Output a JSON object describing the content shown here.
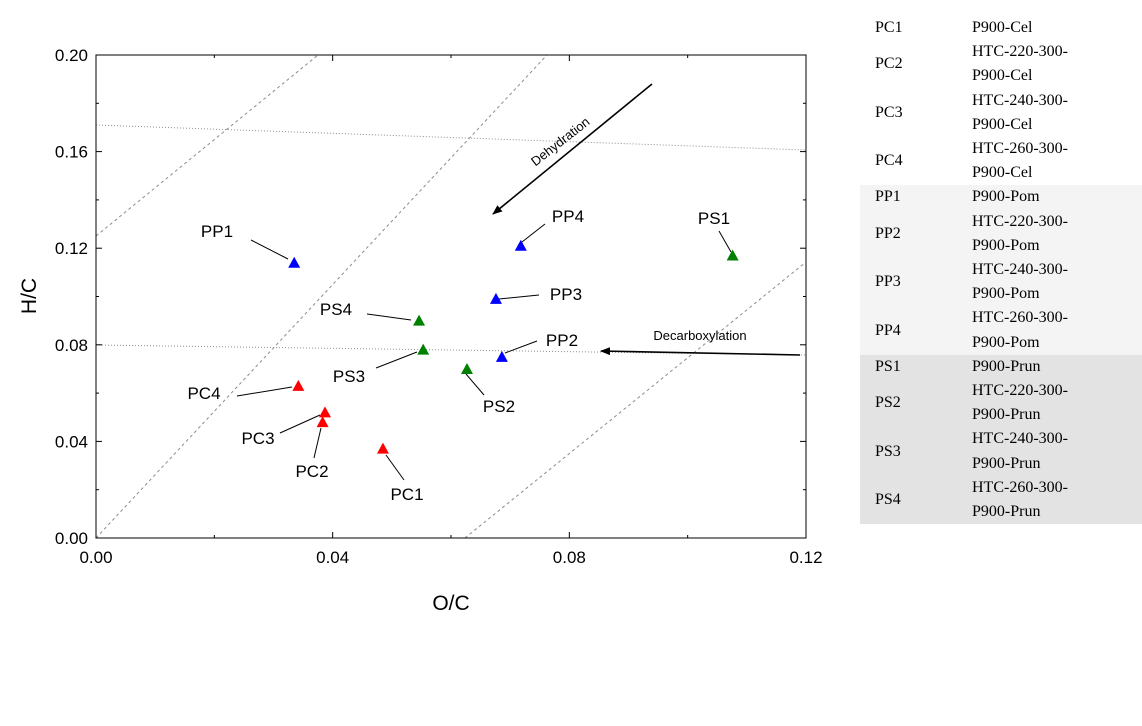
{
  "chart_data": {
    "type": "scatter",
    "xlabel": "O/C",
    "ylabel": "H/C",
    "xlim": [
      0.0,
      0.12
    ],
    "ylim": [
      0.0,
      0.2
    ],
    "x_ticks": [
      "0.00",
      "0.04",
      "0.08",
      "0.12"
    ],
    "y_ticks": [
      "0.00",
      "0.04",
      "0.08",
      "0.12",
      "0.16",
      "0.20"
    ],
    "marker": "triangle",
    "series": [
      {
        "color": "#ff0000",
        "points": [
          {
            "label": "PC1",
            "x": 0.0485,
            "y": 0.037
          },
          {
            "label": "PC2",
            "x": 0.0383,
            "y": 0.048
          },
          {
            "label": "PC3",
            "x": 0.0387,
            "y": 0.052
          },
          {
            "label": "PC4",
            "x": 0.0342,
            "y": 0.063
          }
        ]
      },
      {
        "color": "#0000ff",
        "points": [
          {
            "label": "PP1",
            "x": 0.0335,
            "y": 0.114
          },
          {
            "label": "PP2",
            "x": 0.0686,
            "y": 0.075
          },
          {
            "label": "PP3",
            "x": 0.0676,
            "y": 0.099
          },
          {
            "label": "PP4",
            "x": 0.0718,
            "y": 0.121
          }
        ]
      },
      {
        "color": "#008000",
        "points": [
          {
            "label": "PS1",
            "x": 0.1076,
            "y": 0.117
          },
          {
            "label": "PS2",
            "x": 0.0627,
            "y": 0.07
          },
          {
            "label": "PS3",
            "x": 0.0553,
            "y": 0.078
          },
          {
            "label": "PS4",
            "x": 0.0546,
            "y": 0.09
          }
        ]
      }
    ],
    "annotations": [
      "Dehydration",
      "Decarboxylation"
    ],
    "grid": false
  },
  "legend_table": [
    {
      "code": "PC1",
      "lines": [
        "P900-Cel"
      ],
      "group": "PC"
    },
    {
      "code": "PC2",
      "lines": [
        "HTC-220-300-",
        "P900-Cel"
      ],
      "group": "PC"
    },
    {
      "code": "PC3",
      "lines": [
        "HTC-240-300-",
        "P900-Cel"
      ],
      "group": "PC"
    },
    {
      "code": "PC4",
      "lines": [
        "HTC-260-300-",
        "P900-Cel"
      ],
      "group": "PC"
    },
    {
      "code": "PP1",
      "lines": [
        "P900-Pom"
      ],
      "group": "PP"
    },
    {
      "code": "PP2",
      "lines": [
        "HTC-220-300-",
        "P900-Pom"
      ],
      "group": "PP"
    },
    {
      "code": "PP3",
      "lines": [
        "HTC-240-300-",
        "P900-Pom"
      ],
      "group": "PP"
    },
    {
      "code": "PP4",
      "lines": [
        "HTC-260-300-",
        "P900-Pom"
      ],
      "group": "PP"
    },
    {
      "code": "PS1",
      "lines": [
        "P900-Prun"
      ],
      "group": "PS"
    },
    {
      "code": "PS2",
      "lines": [
        "HTC-220-300-",
        "P900-Prun"
      ],
      "group": "PS"
    },
    {
      "code": "PS3",
      "lines": [
        "HTC-240-300-",
        "P900-Prun"
      ],
      "group": "PS"
    },
    {
      "code": "PS4",
      "lines": [
        "HTC-260-300-",
        "P900-Prun"
      ],
      "group": "PS"
    }
  ]
}
